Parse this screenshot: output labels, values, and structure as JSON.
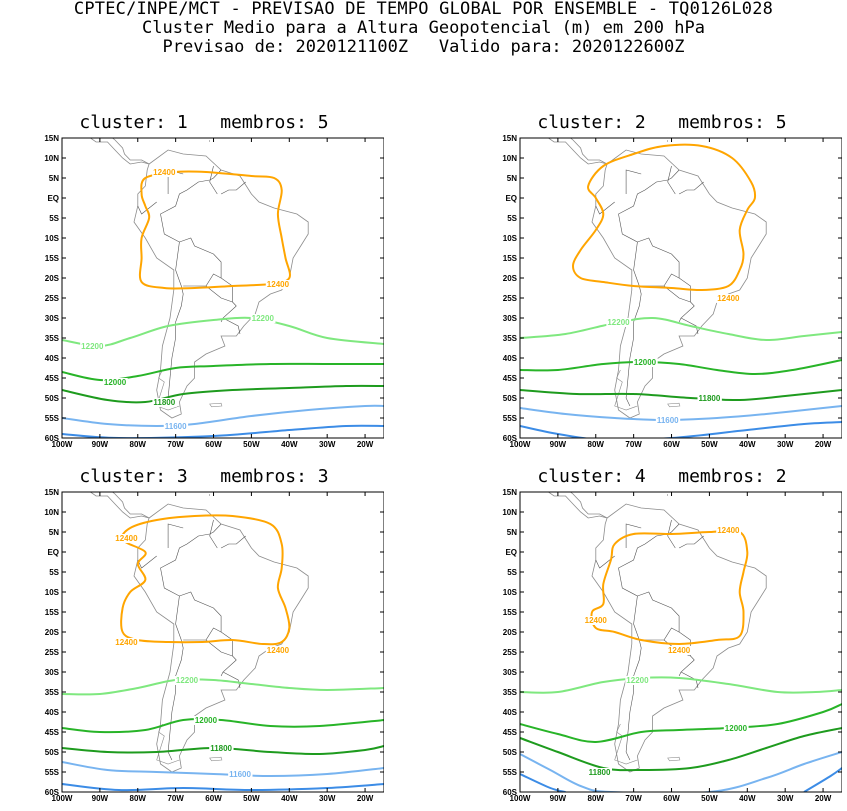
{
  "header": {
    "line1": "CPTEC/INPE/MCT - PREVISAO DE TEMPO GLOBAL POR ENSEMBLE - TQ0126L028",
    "line2": "Cluster Medio para a Altura Geopotencial (m) em 200 hPa",
    "line3": "Previsao de: 2020121100Z   Valido para: 2020122600Z"
  },
  "axes": {
    "lat_labels": [
      "15N",
      "10N",
      "5N",
      "EQ",
      "5S",
      "10S",
      "15S",
      "20S",
      "25S",
      "30S",
      "35S",
      "40S",
      "45S",
      "50S",
      "55S",
      "60S"
    ],
    "lon_labels": [
      "100W",
      "90W",
      "80W",
      "70W",
      "60W",
      "50W",
      "40W",
      "30W",
      "20W"
    ]
  },
  "contour_colors": {
    "12400": "#ffa500",
    "12200": "#7fe87f",
    "12000": "#28b428",
    "11800": "#1e9b1e",
    "11600": "#78b4f0",
    "11400": "#3c8ce6"
  },
  "panels": [
    {
      "title": "cluster: 1   membros: 5",
      "labels": [
        {
          "text": "12400",
          "lon": -73,
          "lat": 6.5,
          "color": "#ffa500"
        },
        {
          "text": "12400",
          "lon": -43,
          "lat": -21.5,
          "color": "#ffa500"
        },
        {
          "text": "12200",
          "lon": -47,
          "lat": -30,
          "color": "#7fe87f"
        },
        {
          "text": "12200",
          "lon": -92,
          "lat": -37,
          "color": "#7fe87f"
        },
        {
          "text": "12000",
          "lon": -86,
          "lat": -46,
          "color": "#28b428"
        },
        {
          "text": "11800",
          "lon": -73,
          "lat": -51,
          "color": "#1e9b1e"
        },
        {
          "text": "11600",
          "lon": -70,
          "lat": -57,
          "color": "#78b4f0"
        }
      ]
    },
    {
      "title": "cluster: 2   membros: 5",
      "labels": [
        {
          "text": "12400",
          "lon": -45,
          "lat": -25,
          "color": "#ffa500"
        },
        {
          "text": "12200",
          "lon": -74,
          "lat": -31,
          "color": "#7fe87f"
        },
        {
          "text": "12000",
          "lon": -67,
          "lat": -41,
          "color": "#28b428"
        },
        {
          "text": "11800",
          "lon": -50,
          "lat": -50,
          "color": "#1e9b1e"
        },
        {
          "text": "11600",
          "lon": -61,
          "lat": -55.5,
          "color": "#78b4f0"
        }
      ]
    },
    {
      "title": "cluster: 3   membros: 3",
      "labels": [
        {
          "text": "12400",
          "lon": -83,
          "lat": 3.5,
          "color": "#ffa500"
        },
        {
          "text": "12400",
          "lon": -83,
          "lat": -22.5,
          "color": "#ffa500"
        },
        {
          "text": "12400",
          "lon": -43,
          "lat": -24.5,
          "color": "#ffa500"
        },
        {
          "text": "12200",
          "lon": -67,
          "lat": -32,
          "color": "#7fe87f"
        },
        {
          "text": "12000",
          "lon": -62,
          "lat": -42,
          "color": "#28b428"
        },
        {
          "text": "11800",
          "lon": -58,
          "lat": -49,
          "color": "#1e9b1e"
        },
        {
          "text": "11600",
          "lon": -53,
          "lat": -55.5,
          "color": "#78b4f0"
        }
      ]
    },
    {
      "title": "cluster: 4   membros: 2",
      "labels": [
        {
          "text": "12400",
          "lon": -45,
          "lat": 5.5,
          "color": "#ffa500"
        },
        {
          "text": "12400",
          "lon": -80,
          "lat": -17,
          "color": "#ffa500"
        },
        {
          "text": "12400",
          "lon": -58,
          "lat": -24.5,
          "color": "#ffa500"
        },
        {
          "text": "12200",
          "lon": -69,
          "lat": -32,
          "color": "#7fe87f"
        },
        {
          "text": "12000",
          "lon": -43,
          "lat": -44,
          "color": "#28b428"
        },
        {
          "text": "11800",
          "lon": -79,
          "lat": -55,
          "color": "#1e9b1e"
        }
      ]
    }
  ]
}
